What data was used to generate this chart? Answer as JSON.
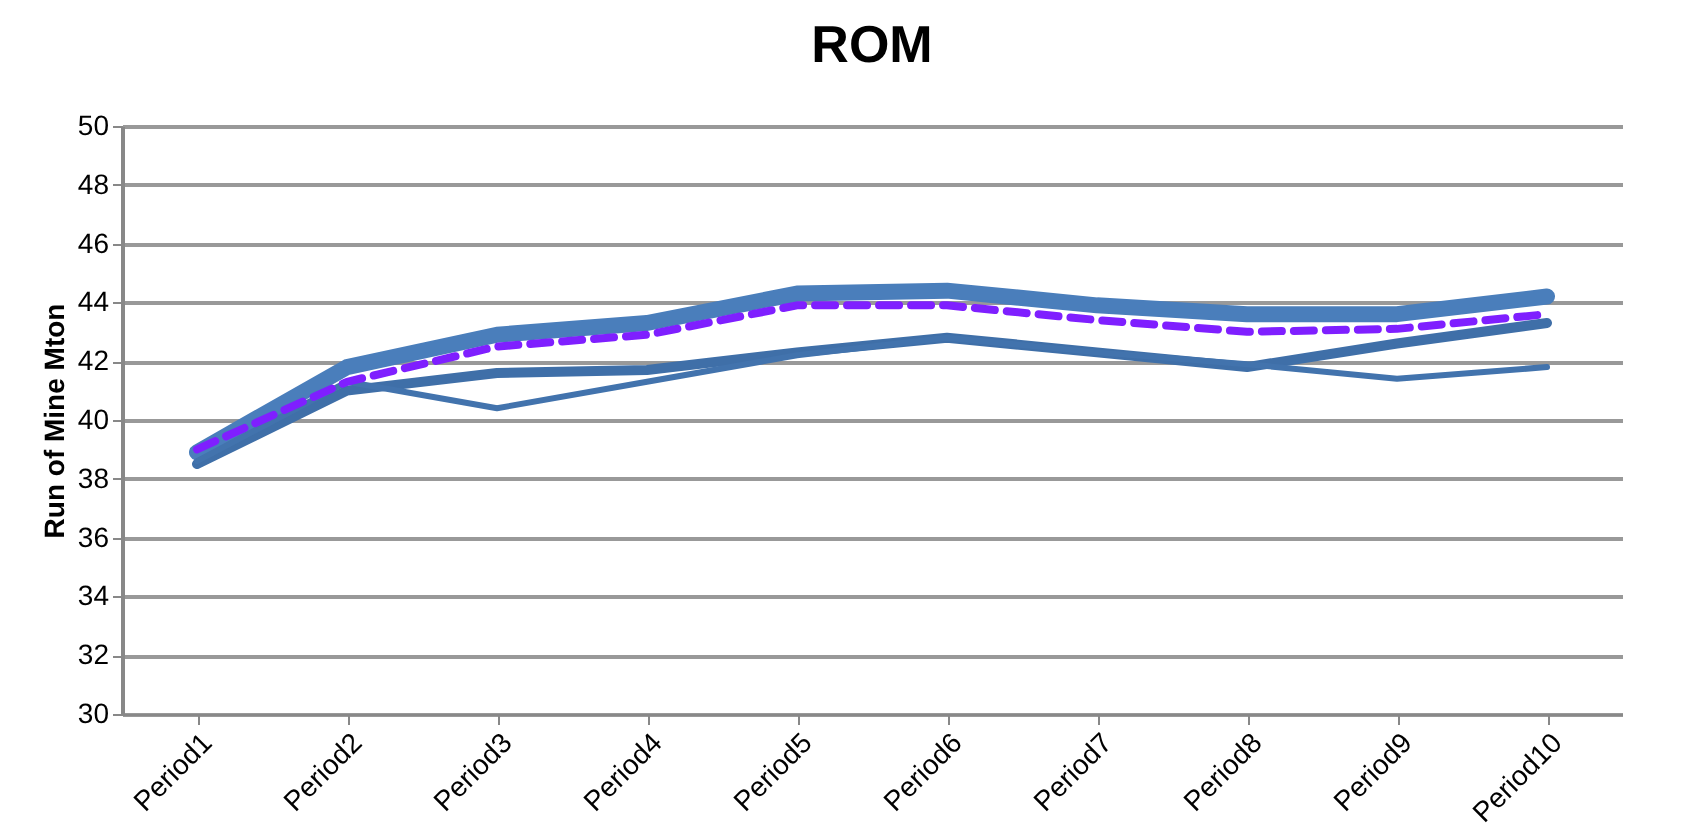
{
  "chart_data": {
    "type": "line",
    "title": "ROM",
    "ylabel": "Run of Mine Mton",
    "categories": [
      "Period1",
      "Period2",
      "Period3",
      "Period4",
      "Period5",
      "Period6",
      "Period7",
      "Period8",
      "Period9",
      "Period10"
    ],
    "series": [
      {
        "color": "#4a7ebb",
        "values": [
          38.9,
          41.8,
          42.9,
          43.3,
          44.3,
          44.4,
          43.9,
          43.6,
          43.6,
          44.2
        ]
      },
      {
        "color": "#3f6fa8",
        "values": [
          38.5,
          41.0,
          41.6,
          41.7,
          42.3,
          42.8,
          42.3,
          41.8,
          42.6,
          43.3
        ]
      },
      {
        "color": "#4273ad",
        "values": [
          38.6,
          41.3,
          40.4,
          41.3,
          42.2,
          42.8,
          42.3,
          41.9,
          41.4,
          41.8
        ]
      },
      {
        "color": "#7f1fff",
        "line_style": "dashed",
        "values": [
          39.0,
          41.3,
          42.5,
          42.9,
          43.9,
          43.9,
          43.4,
          43.0,
          43.1,
          43.6
        ]
      }
    ],
    "ylim": [
      30,
      50
    ],
    "yticks": [
      30,
      32,
      34,
      36,
      38,
      40,
      42,
      44,
      46,
      48,
      50
    ],
    "grid": "y"
  }
}
